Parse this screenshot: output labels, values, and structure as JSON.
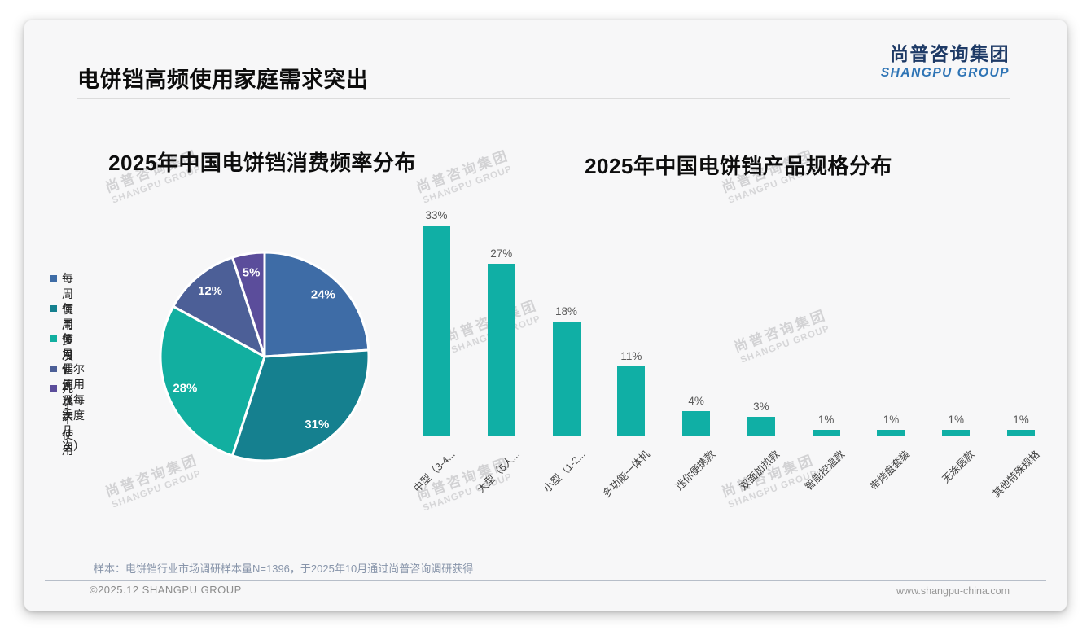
{
  "page": {
    "title": "电饼铛高频使用家庭需求突出",
    "logo": {
      "cn": "尚普咨询集团",
      "en": "SHANGPU GROUP"
    },
    "watermark": {
      "cn": "尚普咨询集团",
      "en": "SHANGPU GROUP"
    },
    "footnote": "样本：电饼铛行业市场调研样本量N=1396，于2025年10月通过尚普咨询调研获得",
    "footer": {
      "left": "©2025.12 SHANGPU GROUP",
      "right": "www.shangpu-china.com"
    }
  },
  "chart_data": [
    {
      "type": "pie",
      "title": "2025年中国电饼铛消费频率分布",
      "labels": [
        "每周使用多次",
        "每周使用1-2次",
        "每月使用几次",
        "偶尔使用（每季度几次）",
        "几乎不使用"
      ],
      "values": [
        24,
        31,
        28,
        12,
        5
      ],
      "unit": "%",
      "data_labels": [
        "24%",
        "31%",
        "28%",
        "12%",
        "5%"
      ],
      "colors": [
        "#3E6CA6",
        "#15808F",
        "#12AFA0",
        "#4C5F97",
        "#5B4D9B"
      ],
      "legend_position": "left",
      "start_angle_deg": 0,
      "direction": "clockwise"
    },
    {
      "type": "bar",
      "title": "2025年中国电饼铛产品规格分布",
      "categories": [
        "中型（3-4...",
        "大型（5人...",
        "小型（1-2...",
        "多功能一体机",
        "迷你便携款",
        "双面加热款",
        "智能控温款",
        "带烤盘套装",
        "无涂层款",
        "其他特殊规格"
      ],
      "values": [
        33,
        27,
        18,
        11,
        4,
        3,
        1,
        1,
        1,
        1
      ],
      "unit": "%",
      "data_labels": [
        "33%",
        "27%",
        "18%",
        "11%",
        "4%",
        "3%",
        "1%",
        "1%",
        "1%",
        "1%"
      ],
      "bar_color": "#10AFA5",
      "ylim": [
        0,
        35
      ],
      "grid": false,
      "value_labels_position": "above"
    }
  ]
}
